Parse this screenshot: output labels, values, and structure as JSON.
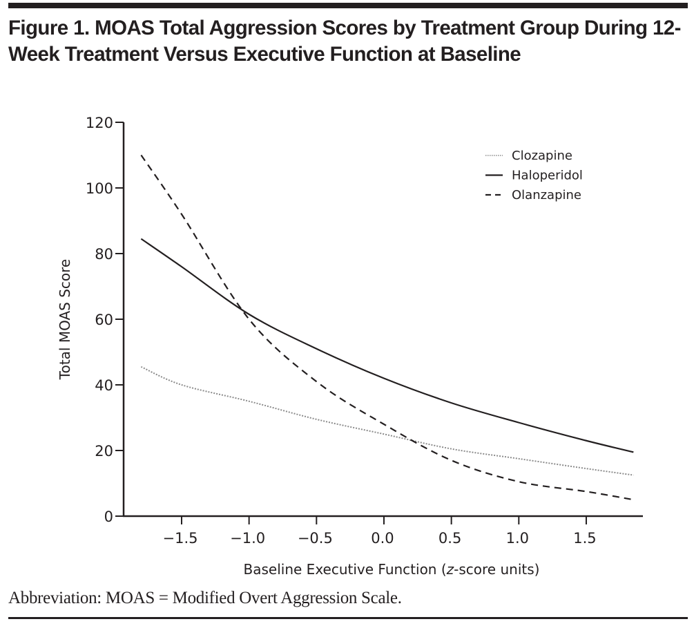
{
  "figure": {
    "title": "Figure 1. MOAS Total Aggression Scores by Treatment Group During 12-Week Treatment Versus Executive Function at Baseline",
    "footnote": "Abbreviation: MOAS = Modified Overt Aggression Scale."
  },
  "chart_data": {
    "type": "line",
    "title": "Figure 1. MOAS Total Aggression Scores by Treatment Group During 12-Week Treatment Versus Executive Function at Baseline",
    "xlabel_parts": [
      "Baseline Executive Function (",
      "z",
      "-score units)"
    ],
    "xlabel": "Baseline Executive Function (z-score units)",
    "ylabel": "Total MOAS Score",
    "xlim": [
      -1.93,
      1.92
    ],
    "ylim": [
      0,
      120
    ],
    "xticks": [
      -1.5,
      -1.0,
      -0.5,
      0.0,
      0.5,
      1.0,
      1.5
    ],
    "xtick_labels": [
      "−1.5",
      "−1.0",
      "−0.5",
      "0.0",
      "0.5",
      "1.0",
      "1.5"
    ],
    "yticks": [
      0,
      20,
      40,
      60,
      80,
      100,
      120
    ],
    "ytick_labels": [
      "0",
      "20",
      "40",
      "60",
      "80",
      "100",
      "120"
    ],
    "grid": false,
    "legend_position": "top-right",
    "x": [
      -1.8,
      -1.5,
      -1.0,
      -0.5,
      0.0,
      0.5,
      1.0,
      1.5,
      1.85
    ],
    "series": [
      {
        "name": "Clozapine",
        "style": "dotted",
        "color": "#8a8a8a",
        "values": [
          45.5,
          40,
          35,
          29.5,
          25,
          20.5,
          17.5,
          14.5,
          12.5
        ]
      },
      {
        "name": "Haloperidol",
        "style": "solid",
        "color": "#231f20",
        "values": [
          84.5,
          76,
          61.5,
          51,
          42,
          34.5,
          28.5,
          23,
          19.5
        ]
      },
      {
        "name": "Olanzapine",
        "style": "dashed",
        "color": "#231f20",
        "values": [
          110,
          92,
          60,
          41,
          28,
          17,
          10.5,
          7.5,
          5
        ]
      }
    ]
  }
}
